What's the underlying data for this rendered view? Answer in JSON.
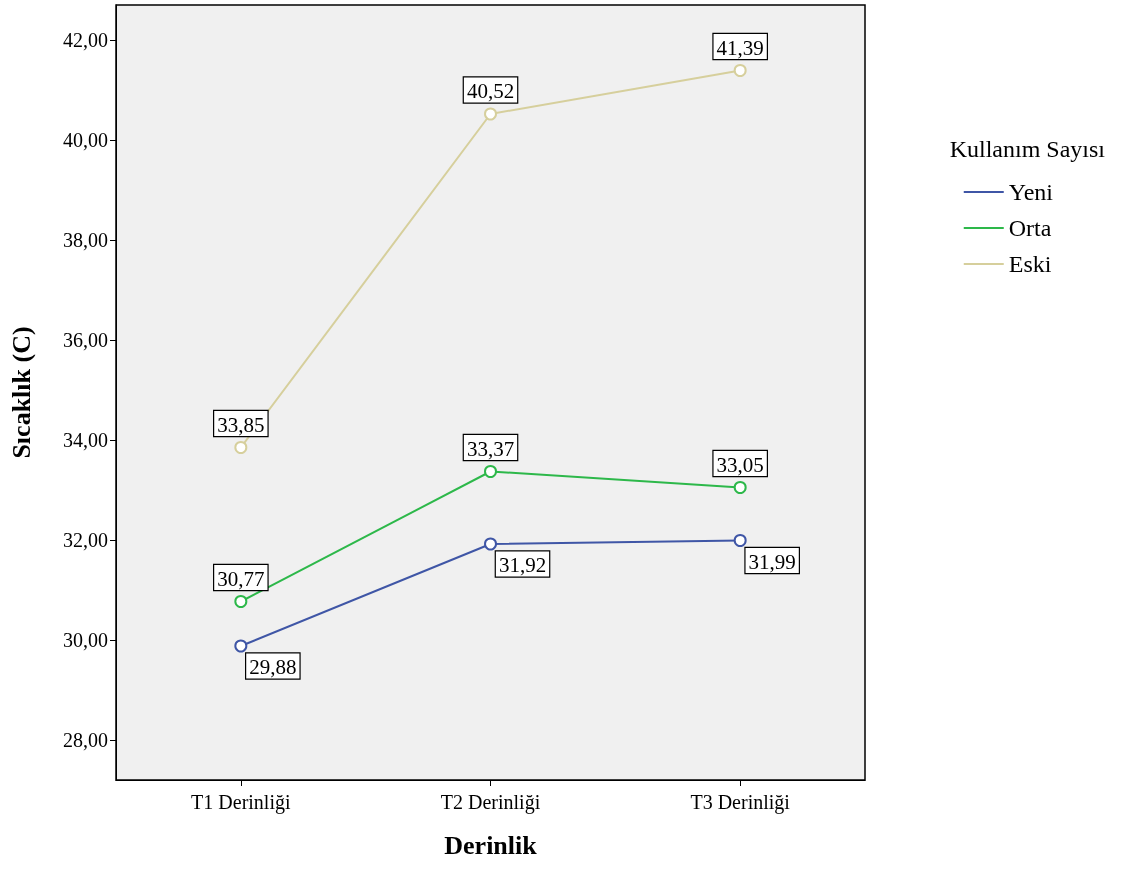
{
  "chart_data": {
    "type": "line",
    "xlabel": "Derinlik",
    "ylabel": "Sıcaklık (C)",
    "legend_title": "Kullanım Sayısı",
    "categories": [
      "T1 Derinliği",
      "T2 Derinliği",
      "T3 Derinliği"
    ],
    "series": [
      {
        "name": "Yeni",
        "color": "#3f56a6",
        "values": [
          29.88,
          31.92,
          31.99
        ],
        "value_labels": [
          "29,88",
          "31,92",
          "31,99"
        ]
      },
      {
        "name": "Orta",
        "color": "#2db84a",
        "values": [
          30.77,
          33.37,
          33.05
        ],
        "value_labels": [
          "30,77",
          "33,37",
          "33,05"
        ]
      },
      {
        "name": "Eski",
        "color": "#d6cf9c",
        "values": [
          33.85,
          40.52,
          41.39
        ],
        "value_labels": [
          "33,85",
          "40,52",
          "41,39"
        ]
      }
    ],
    "ylim": [
      27.2,
      42.7
    ],
    "yticks": [
      {
        "value": 28,
        "label": "28,00"
      },
      {
        "value": 30,
        "label": "30,00"
      },
      {
        "value": 32,
        "label": "32,00"
      },
      {
        "value": 34,
        "label": "34,00"
      },
      {
        "value": 36,
        "label": "36,00"
      },
      {
        "value": 38,
        "label": "38,00"
      },
      {
        "value": 40,
        "label": "40,00"
      },
      {
        "value": 42,
        "label": "42,00"
      }
    ],
    "grid": false,
    "legend": "right",
    "marker": "circle",
    "line_style": "solid"
  }
}
